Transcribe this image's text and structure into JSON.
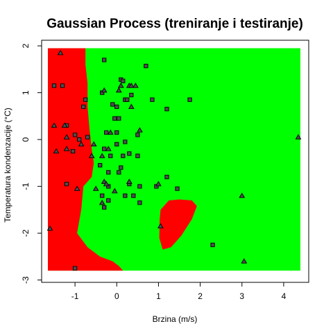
{
  "chart_data": {
    "type": "scatter",
    "title": "Gaussian Process (treniranje i testiranje)",
    "xlabel": "Brzina (m/s)",
    "ylabel": "Temperatura kondenzacije (°C)",
    "xlim": [
      -1.8,
      4.6
    ],
    "ylim": [
      -3.05,
      2.12
    ],
    "x_ticks": [
      -1,
      0,
      1,
      2,
      3,
      4
    ],
    "y_ticks": [
      -3,
      -2,
      -1,
      0,
      1,
      2
    ],
    "grid": false,
    "legend": "none",
    "colors": {
      "region_a": "#ff0000",
      "region_b": "#00ff00",
      "point_fill": "#4d4d4d",
      "point_stroke": "#000000"
    },
    "region_a_boundary": [
      [
        -1.65,
        1.95
      ],
      [
        -0.75,
        1.95
      ],
      [
        -0.75,
        1.6
      ],
      [
        -0.7,
        1.2
      ],
      [
        -0.7,
        0.7
      ],
      [
        -0.65,
        0.2
      ],
      [
        -0.6,
        -0.2
      ],
      [
        -0.55,
        -0.5
      ],
      [
        -0.6,
        -0.8
      ],
      [
        -0.8,
        -1.0
      ],
      [
        -0.85,
        -1.5
      ],
      [
        -0.95,
        -2.0
      ],
      [
        -0.7,
        -2.3
      ],
      [
        -0.4,
        -2.5
      ],
      [
        -0.1,
        -2.6
      ],
      [
        0.05,
        -2.7
      ],
      [
        0.15,
        -2.8
      ],
      [
        -1.65,
        -2.8
      ]
    ],
    "region_a_island": [
      [
        1.05,
        -1.5
      ],
      [
        1.25,
        -1.3
      ],
      [
        1.5,
        -1.28
      ],
      [
        1.8,
        -1.3
      ],
      [
        1.92,
        -1.42
      ],
      [
        1.8,
        -1.7
      ],
      [
        1.55,
        -2.05
      ],
      [
        1.3,
        -2.3
      ],
      [
        1.1,
        -2.35
      ],
      [
        1.02,
        -2.1
      ],
      [
        1.03,
        -1.7
      ]
    ],
    "region_extent": {
      "x": [
        -1.65,
        4.4
      ],
      "y": [
        -2.8,
        1.95
      ]
    },
    "series": [
      {
        "marker": "square",
        "x": [
          -1.5,
          -1.3,
          -0.3,
          0.1,
          0.15,
          0.7,
          -0.35,
          -0.1,
          0.0,
          0.2,
          0.35,
          0.05,
          0.25,
          -0.8,
          -0.75,
          -1.2,
          -1.0,
          -0.7,
          -0.25,
          0.0,
          0.2,
          0.5,
          0.85,
          1.2,
          1.75,
          -0.05,
          -0.9,
          0.0,
          -1.05,
          -0.3,
          -0.15,
          0.15,
          0.3,
          0.5,
          -0.4,
          0.1,
          -0.2,
          -1.2,
          -0.2,
          0.3,
          0.05,
          0.55,
          0.95,
          1.2,
          1.45,
          -0.35,
          0.2,
          0.4,
          -0.2,
          -0.3,
          0.55,
          2.3,
          -1.0
        ],
        "y": [
          1.15,
          1.15,
          1.7,
          1.28,
          1.25,
          1.57,
          1.0,
          0.75,
          0.7,
          0.85,
          0.95,
          0.45,
          0.85,
          0.7,
          0.85,
          0.3,
          0.1,
          0.05,
          0.15,
          0.15,
          -0.05,
          0.1,
          0.85,
          0.65,
          0.85,
          0.45,
          0.0,
          -0.1,
          -0.25,
          -0.2,
          -0.35,
          -0.35,
          -0.3,
          -0.35,
          -0.55,
          -0.6,
          -0.7,
          -0.95,
          -1.0,
          -0.95,
          -0.7,
          -1.0,
          -1.0,
          -0.8,
          -1.05,
          -1.2,
          -1.2,
          -1.2,
          -1.3,
          -1.45,
          -1.35,
          -2.25,
          -2.75
        ]
      },
      {
        "marker": "triangle",
        "x": [
          -1.35,
          -1.5,
          -1.25,
          -1.2,
          0.05,
          0.3,
          0.35,
          0.45,
          -0.3,
          0.1,
          0.35,
          0.55,
          -0.15,
          -0.55,
          -0.2,
          -0.35,
          -1.45,
          -1.2,
          -0.85,
          -0.6,
          -0.3,
          -0.25,
          -0.05,
          0.3,
          -0.5,
          -0.95,
          -0.35,
          1.0,
          1.05,
          3.0,
          3.05,
          4.35,
          -1.6
        ],
        "y": [
          1.85,
          0.3,
          0.3,
          0.05,
          1.05,
          1.15,
          1.15,
          1.15,
          1.05,
          1.15,
          0.7,
          0.2,
          0.15,
          -0.1,
          -0.2,
          -0.35,
          -0.25,
          -0.2,
          -0.1,
          -0.35,
          -0.9,
          -0.95,
          -1.1,
          -0.9,
          -1.05,
          -1.05,
          -1.35,
          -0.95,
          -1.85,
          -1.2,
          -2.6,
          0.05,
          -1.9
        ]
      }
    ]
  }
}
